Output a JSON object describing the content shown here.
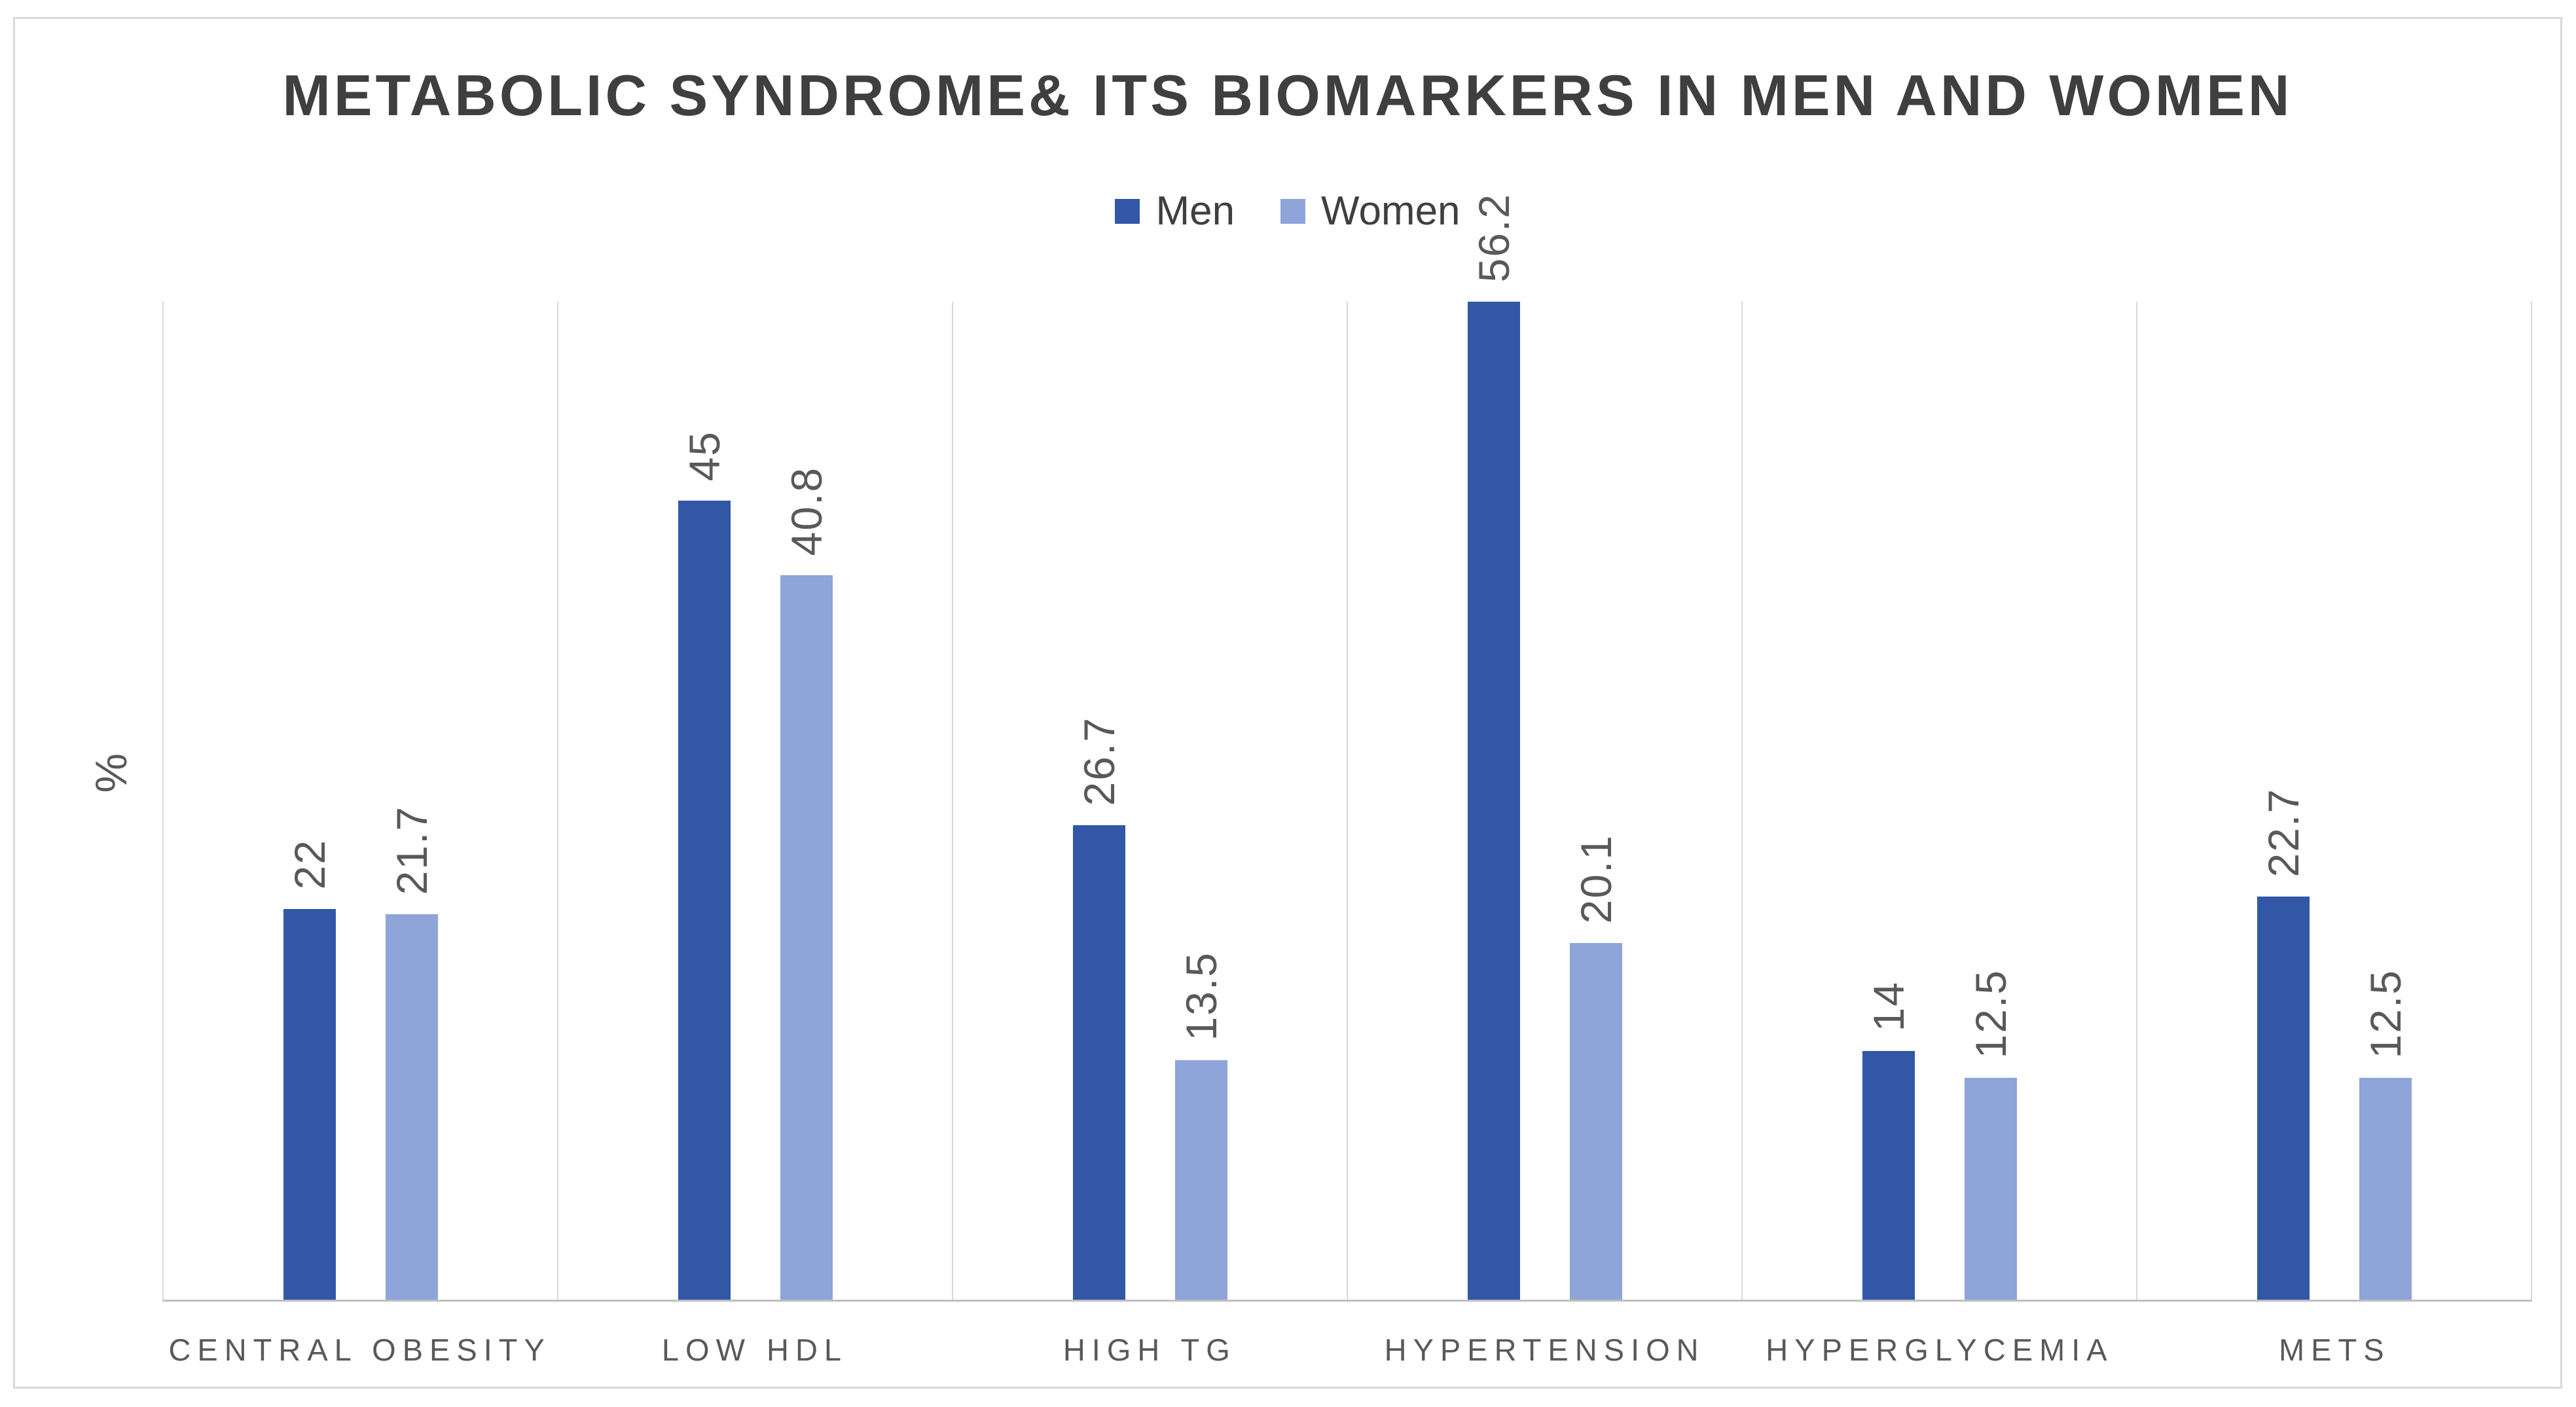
{
  "chart_data": {
    "type": "bar",
    "title": "METABOLIC SYNDROME& ITS BIOMARKERS IN MEN AND WOMEN",
    "xlabel": "",
    "ylabel": "%",
    "categories": [
      "CENTRAL OBESITY",
      "LOW HDL",
      "HIGH TG",
      "HYPERTENSION",
      "HYPERGLYCEMIA",
      "METS"
    ],
    "series": [
      {
        "name": "Men",
        "color": "#3157A6",
        "values": [
          22,
          45,
          26.7,
          56.2,
          14,
          22.7
        ]
      },
      {
        "name": "Women",
        "color": "#8FA4D9",
        "values": [
          21.7,
          40.8,
          13.5,
          20.1,
          12.5,
          12.5
        ]
      }
    ],
    "data_labels": [
      "22",
      "21.7",
      "45",
      "40.8",
      "26.7",
      "13.5",
      "56.2",
      "20.1",
      "14",
      "12.5",
      "22.7",
      "12.5"
    ],
    "ylim": [
      0,
      56.2
    ],
    "grid": "vertical-category-separators-only",
    "legend_position": "top-center",
    "data_label_orientation": "rotated-90-bottom-to-top"
  },
  "style_colors": {
    "chart_border": "#d9d9d9",
    "gridline": "#d9d9d9",
    "axis_line": "#bfbfbf",
    "title_text": "#3f3f3f",
    "label_text": "#595959",
    "background": "#ffffff"
  }
}
